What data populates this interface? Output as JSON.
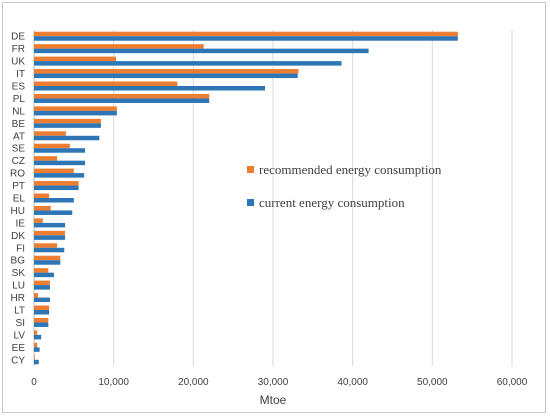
{
  "chart_data": {
    "type": "bar",
    "orientation": "horizontal",
    "categories": [
      "DE",
      "FR",
      "UK",
      "IT",
      "ES",
      "PL",
      "NL",
      "BE",
      "AT",
      "SE",
      "CZ",
      "RO",
      "PT",
      "EL",
      "HU",
      "IE",
      "DK",
      "FI",
      "BG",
      "SK",
      "LU",
      "HR",
      "LT",
      "SI",
      "LV",
      "EE",
      "CY"
    ],
    "series": [
      {
        "name": "recommended energy consumption",
        "color": "#ED7D31",
        "values": [
          53200,
          21300,
          10300,
          33200,
          18000,
          22000,
          10400,
          8400,
          4000,
          4500,
          2900,
          5000,
          5600,
          1900,
          2100,
          1100,
          3900,
          2900,
          3300,
          1800,
          2000,
          500,
          1900,
          1800,
          400,
          400,
          100
        ]
      },
      {
        "name": "current energy consumption",
        "color": "#2E75B6",
        "values": [
          53200,
          42000,
          38600,
          33100,
          29000,
          22000,
          10400,
          8400,
          8200,
          6400,
          6400,
          6300,
          5600,
          5000,
          4800,
          3900,
          3900,
          3800,
          3300,
          2500,
          2000,
          2000,
          1900,
          1800,
          900,
          700,
          600
        ]
      }
    ],
    "xlabel": "Mtoe",
    "xlim": [
      0,
      60000
    ],
    "xticks": [
      "0",
      "10,000",
      "20,000",
      "30,000",
      "40,000",
      "50,000",
      "60,000"
    ],
    "grid": true,
    "legend_position": "right-middle"
  }
}
